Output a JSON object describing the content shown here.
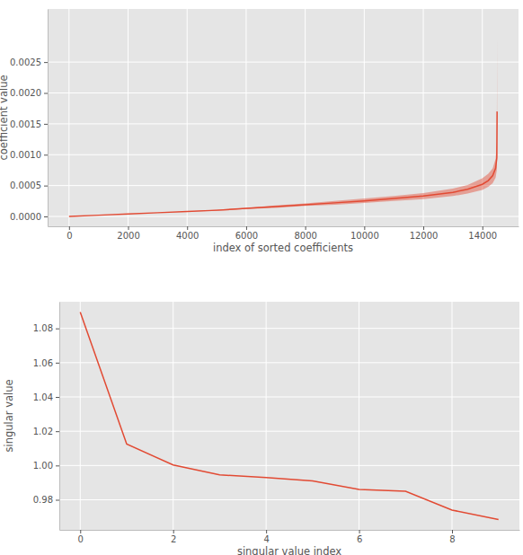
{
  "chart_data": [
    {
      "type": "line",
      "xlabel": "index of sorted coefficients",
      "ylabel": "coefficient value",
      "x": [
        0,
        1000,
        2000,
        3000,
        4000,
        5000,
        6000,
        7000,
        8000,
        9000,
        10000,
        11000,
        12000,
        13000,
        13500,
        14000,
        14200,
        14350,
        14450,
        14490,
        14500
      ],
      "series": [
        {
          "color": "#e24a33",
          "values": [
            0,
            2e-05,
            4e-05,
            6e-05,
            8e-05,
            0.0001,
            0.00013,
            0.00016,
            0.00019,
            0.00022,
            0.00025,
            0.00029,
            0.00033,
            0.00039,
            0.00044,
            0.00052,
            0.00058,
            0.00066,
            0.00078,
            0.00095,
            0.0017
          ],
          "lower": [
            0,
            2e-05,
            4e-05,
            6e-05,
            8e-05,
            9e-05,
            0.00012,
            0.00014,
            0.00017,
            0.00019,
            0.00022,
            0.00025,
            0.00028,
            0.00033,
            0.00037,
            0.00043,
            0.00048,
            0.00054,
            0.00063,
            0.00075,
            0.001
          ],
          "upper": [
            0,
            2e-05,
            4e-05,
            6e-05,
            8e-05,
            0.00011,
            0.00014,
            0.00018,
            0.00021,
            0.00025,
            0.00029,
            0.00033,
            0.00038,
            0.00045,
            0.00051,
            0.00062,
            0.00069,
            0.00078,
            0.00093,
            0.0012,
            0.0029
          ]
        }
      ],
      "xlim": [
        -725,
        15225
      ],
      "ylim": [
        -0.00016,
        0.00336
      ],
      "xticks": [
        0,
        2000,
        4000,
        6000,
        8000,
        10000,
        12000,
        14000
      ],
      "yticks": [
        {
          "value": 0,
          "label": "0.0000"
        },
        0.0005,
        {
          "value": 0.001,
          "label": "0.0010"
        },
        0.0015,
        {
          "value": 0.002,
          "label": "0.0020"
        },
        0.0025
      ],
      "grid": true
    },
    {
      "type": "line",
      "xlabel": "singular value index",
      "ylabel": "singular value",
      "x": [
        0,
        1,
        2,
        3,
        4,
        5,
        6,
        7,
        8,
        9
      ],
      "series": [
        {
          "color": "#e24a33",
          "values": [
            1.0895,
            1.0125,
            1.0003,
            0.9945,
            0.993,
            0.991,
            0.986,
            0.985,
            0.974,
            0.9685
          ]
        }
      ],
      "xlim": [
        -0.45,
        9.45
      ],
      "ylim": [
        0.96245,
        1.09555
      ],
      "xticks": [
        0,
        2,
        4,
        6,
        8
      ],
      "yticks": [
        0.98,
        {
          "value": 1,
          "label": "1.00"
        },
        1.02,
        1.04,
        1.06,
        1.08
      ],
      "grid": true
    }
  ]
}
